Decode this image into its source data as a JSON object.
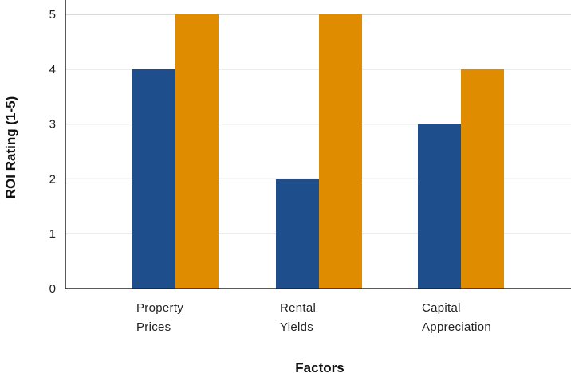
{
  "chart_data": {
    "type": "bar",
    "categories": [
      [
        "Property",
        "Prices"
      ],
      [
        "Rental",
        "Yields"
      ],
      [
        "Capital",
        "Appreciation"
      ]
    ],
    "series": [
      {
        "values": [
          4,
          2,
          3
        ],
        "color": "#1f4e8c"
      },
      {
        "values": [
          5,
          5,
          4
        ],
        "color": "#e08c00"
      }
    ],
    "xlabel": "Factors",
    "ylabel": "ROI Rating (1-5)",
    "ylim": [
      0,
      5
    ],
    "yticks": [
      0,
      1,
      2,
      3,
      4,
      5
    ],
    "grid": true,
    "legend": false
  }
}
